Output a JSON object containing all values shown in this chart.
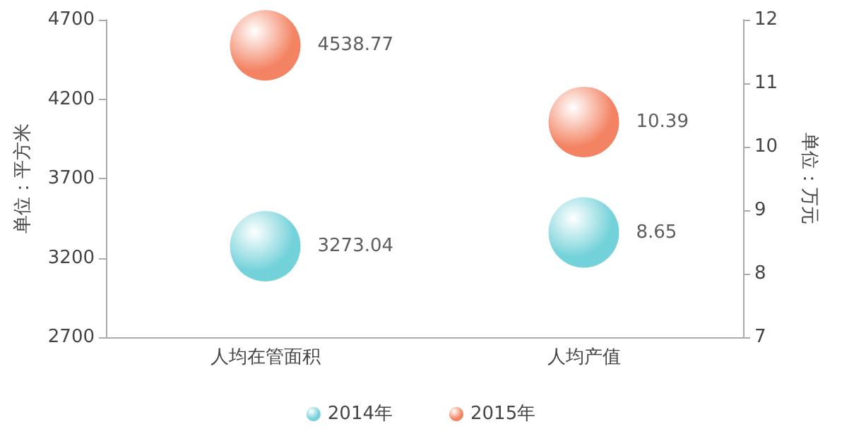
{
  "chart_data": {
    "type": "scatter",
    "categories": [
      "人均在管面积",
      "人均产值"
    ],
    "ylabel": "单位：平方米",
    "y2label": "单位：万元",
    "ylim": [
      2700,
      4700
    ],
    "yticks": [
      2700,
      3200,
      3700,
      4200,
      4700
    ],
    "y2lim": [
      7,
      12
    ],
    "y2ticks": [
      7,
      8,
      9,
      10,
      11,
      12
    ],
    "series": [
      {
        "name": "2014年",
        "color": "#4fc6d0",
        "values": [
          3273.04,
          null
        ],
        "axis": "y"
      },
      {
        "name": "2015年",
        "color": "#f0643c",
        "values": [
          4538.77,
          null
        ],
        "axis": "y"
      },
      {
        "color": "#4fc6d0",
        "values": [
          null,
          8.65
        ],
        "axis": "y2"
      },
      {
        "color": "#f0643c",
        "values": [
          null,
          10.39
        ],
        "axis": "y2"
      }
    ],
    "data_labels": true,
    "marker": "circle",
    "grid": false,
    "legend": "bottom"
  }
}
